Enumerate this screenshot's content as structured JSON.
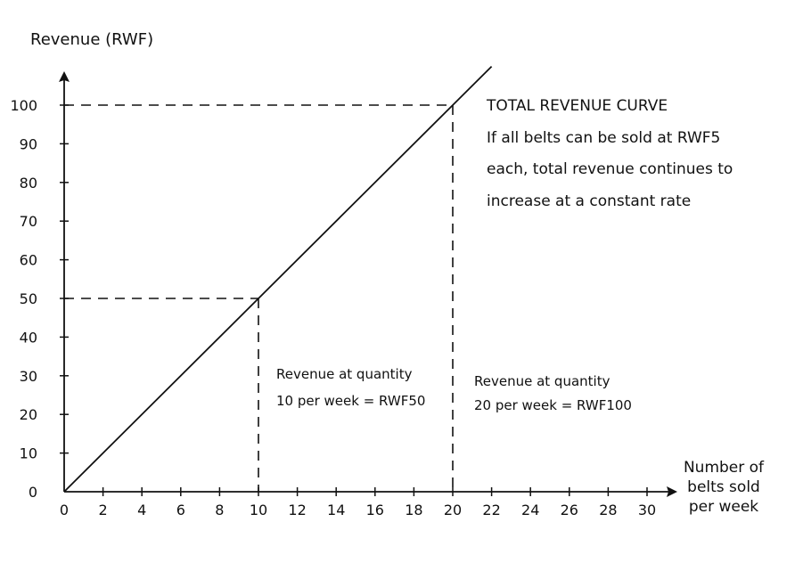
{
  "chart_data": {
    "type": "line",
    "title": "",
    "ylabel": "Revenue (RWF)",
    "xlabel_lines": [
      "Number of",
      "belts sold",
      "per week"
    ],
    "xlim": [
      0,
      30
    ],
    "ylim": [
      0,
      100
    ],
    "x_ticks": [
      0,
      2,
      4,
      6,
      8,
      10,
      12,
      14,
      16,
      18,
      20,
      22,
      24,
      26,
      28,
      30
    ],
    "y_ticks": [
      0,
      10,
      20,
      30,
      40,
      50,
      60,
      70,
      80,
      90,
      100
    ],
    "grid": false,
    "series": [
      {
        "x": [
          0,
          22
        ],
        "y": [
          0,
          110
        ]
      }
    ],
    "reference_points": [
      {
        "x": 10,
        "y": 50
      },
      {
        "x": 20,
        "y": 100
      }
    ],
    "annotations": {
      "curve_title": "TOTAL REVENUE CURVE",
      "curve_note_lines": [
        "If all belts can be sold at RWF5",
        "each, total revenue continues to",
        "increase at a constant rate"
      ],
      "point_10_lines": [
        "Revenue at quantity",
        "10 per week = RWF50"
      ],
      "point_20_lines": [
        "Revenue at quantity",
        "20 per week = RWF100"
      ]
    }
  }
}
